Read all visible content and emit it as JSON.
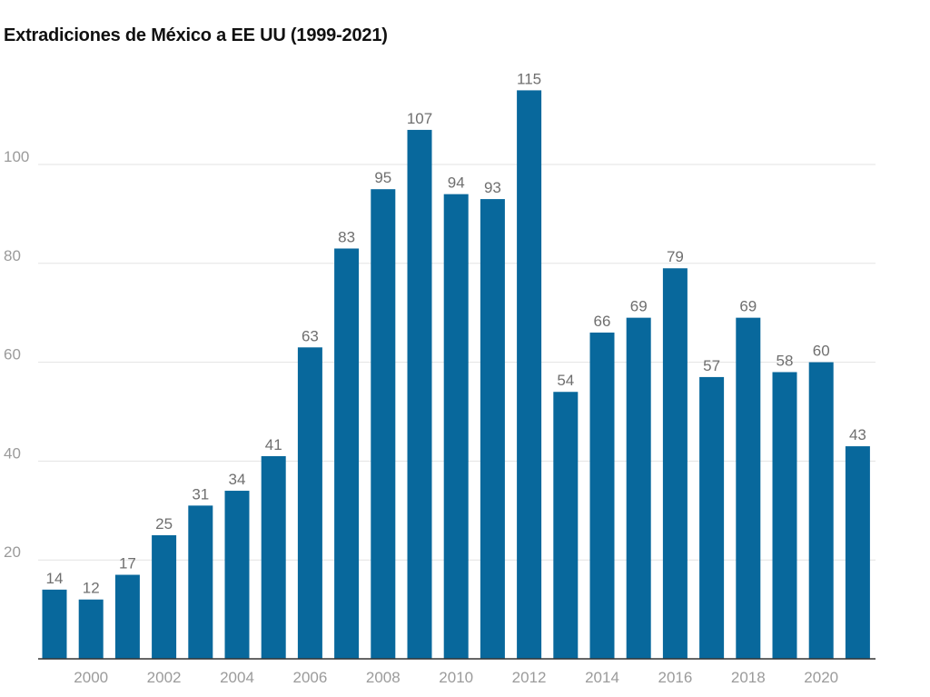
{
  "title": "Extradiciones de México a EE UU (1999-2021)",
  "chart_data": {
    "type": "bar",
    "title": "Extradiciones de México a EE UU (1999-2021)",
    "xlabel": "",
    "ylabel": "",
    "categories": [
      "1999",
      "2000",
      "2001",
      "2002",
      "2003",
      "2004",
      "2005",
      "2006",
      "2007",
      "2008",
      "2009",
      "2010",
      "2011",
      "2012",
      "2013",
      "2014",
      "2015",
      "2016",
      "2017",
      "2018",
      "2019",
      "2020",
      "2021"
    ],
    "values": [
      14,
      12,
      17,
      25,
      31,
      34,
      41,
      63,
      83,
      95,
      107,
      94,
      93,
      115,
      54,
      66,
      69,
      79,
      57,
      69,
      58,
      60,
      43
    ],
    "x_tick_labels": [
      "2000",
      "2002",
      "2004",
      "2006",
      "2008",
      "2010",
      "2012",
      "2014",
      "2016",
      "2018",
      "2020"
    ],
    "y_ticks": [
      20,
      40,
      60,
      80,
      100
    ],
    "ylim": [
      0,
      115
    ],
    "grid": true,
    "bar_color": "#08689c"
  }
}
